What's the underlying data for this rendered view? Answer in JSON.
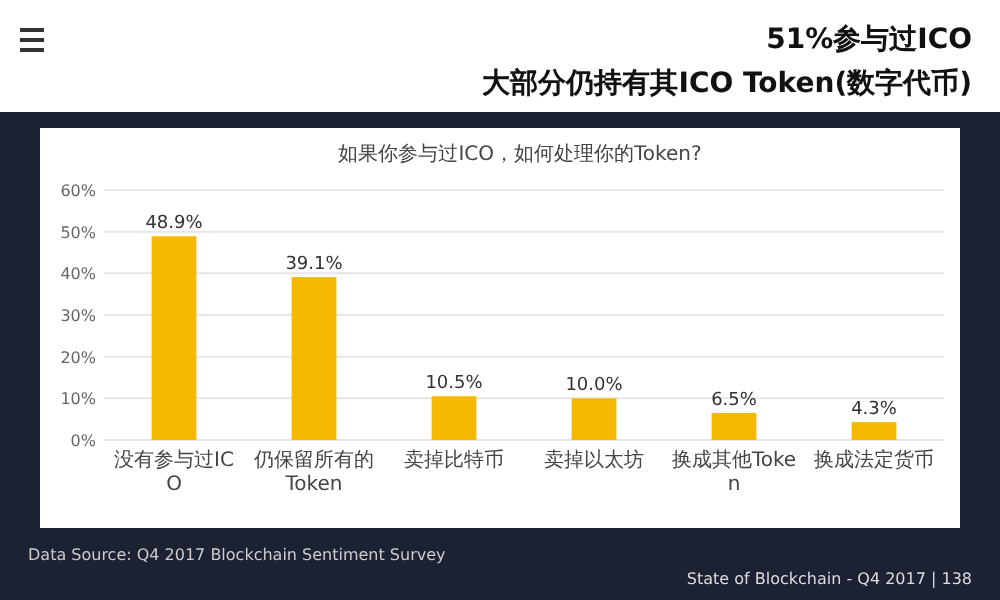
{
  "chart_data": {
    "type": "bar",
    "title": "51%参与过ICO",
    "subtitle": "大部分仍持有其ICO Token(数字代币)",
    "annotations": [
      "如果你参与过ICO，如何处理你的Token?",
      "Data Source: Q4 2017 Blockchain Sentiment Survey",
      "State of Blockchain - Q4 2017  |  138"
    ],
    "categories": [
      "没有参与过ICO",
      "仍保留所有的Token",
      "卖掉比特币",
      "卖掉以太坊",
      "换成其他Token",
      "换成法定货币"
    ],
    "values": [
      48.9,
      39.1,
      10.5,
      10.0,
      6.5,
      4.3
    ],
    "value_labels": [
      "48.9%",
      "39.1%",
      "10.5%",
      "10.0%",
      "6.5%",
      "4.3%"
    ],
    "color": "#f5b800",
    "ylim": [
      0,
      60
    ],
    "yticks": [
      {
        "value": 0,
        "label": "0%"
      },
      {
        "value": 10,
        "label": "10%"
      },
      {
        "value": 20,
        "label": "20%"
      },
      {
        "value": 30,
        "label": "30%"
      },
      {
        "value": 40,
        "label": "40%"
      },
      {
        "value": 50,
        "label": "50%"
      },
      {
        "value": 60,
        "label": "60%"
      }
    ],
    "grid": "y"
  }
}
